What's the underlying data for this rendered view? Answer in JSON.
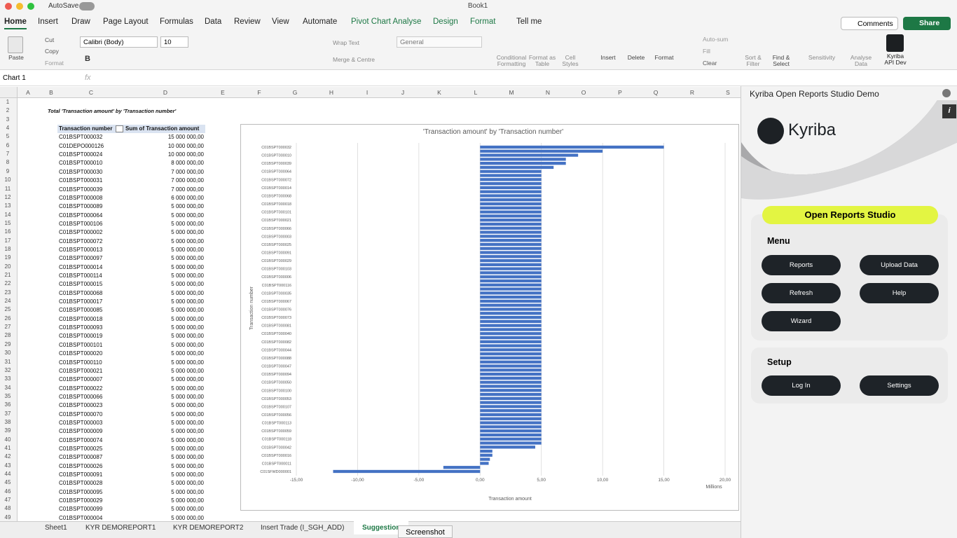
{
  "window": {
    "title": "Book1",
    "autosave": "AutoSave"
  },
  "tabs": [
    "Home",
    "Insert",
    "Draw",
    "Page Layout",
    "Formulas",
    "Data",
    "Review",
    "View",
    "Automate",
    "Pivot Chart Analyse",
    "Design",
    "Format",
    "Tell me"
  ],
  "top_buttons": {
    "comments": "Comments",
    "share": "Share"
  },
  "ribbon": {
    "paste": "Paste",
    "cut": "Cut",
    "copy": "Copy",
    "format_painter": "Format",
    "font": "Calibri (Body)",
    "size": "10",
    "wrap": "Wrap Text",
    "merge": "Merge & Centre",
    "number_format": "General",
    "conditional": "Conditional Formatting",
    "format_table": "Format as Table",
    "cell_styles": "Cell Styles",
    "insert": "Insert",
    "delete": "Delete",
    "format": "Format",
    "autosum": "Auto-sum",
    "fill": "Fill",
    "clear": "Clear",
    "sort": "Sort & Filter",
    "find": "Find & Select",
    "sensitivity": "Sensitivity",
    "analyse": "Analyse Data",
    "kyriba_dev": "Kyriba API Dev"
  },
  "formula_bar": {
    "name_box": "Chart 1"
  },
  "sheet": {
    "columns": [
      "A",
      "B",
      "C",
      "D",
      "E",
      "F",
      "G",
      "H",
      "I",
      "J",
      "K",
      "L",
      "M",
      "N",
      "O",
      "P",
      "Q",
      "R",
      "S"
    ],
    "row_headers": [
      1,
      2,
      3,
      4,
      5,
      6,
      7,
      8,
      9,
      10,
      11,
      12,
      13,
      14,
      15,
      16,
      17,
      18,
      19,
      20,
      21,
      22,
      23,
      24,
      25,
      26,
      27,
      28,
      29,
      30,
      31,
      32,
      33,
      34,
      35,
      36,
      37,
      38,
      39,
      40,
      41,
      42,
      43,
      44,
      45,
      46,
      47,
      48,
      49
    ],
    "title": "Total 'Transaction amount' by 'Transaction number'",
    "table": {
      "header": [
        "Transaction number",
        "Sum of Transaction amount"
      ],
      "rows": [
        [
          "C01BSPT000032",
          "15 000 000,00"
        ],
        [
          "C01DEPO000126",
          "10 000 000,00"
        ],
        [
          "C01BSPT000024",
          "10 000 000,00"
        ],
        [
          "C01BSPT000010",
          "8 000 000,00"
        ],
        [
          "C01BSPT000030",
          "7 000 000,00"
        ],
        [
          "C01BSPT000031",
          "7 000 000,00"
        ],
        [
          "C01BSPT000039",
          "7 000 000,00"
        ],
        [
          "C01BSPT000008",
          "6 000 000,00"
        ],
        [
          "C01BSPT000089",
          "5 000 000,00"
        ],
        [
          "C01BSPT000064",
          "5 000 000,00"
        ],
        [
          "C01BSPT000106",
          "5 000 000,00"
        ],
        [
          "C01BSPT000002",
          "5 000 000,00"
        ],
        [
          "C01BSPT000072",
          "5 000 000,00"
        ],
        [
          "C01BSPT000013",
          "5 000 000,00"
        ],
        [
          "C01BSPT000097",
          "5 000 000,00"
        ],
        [
          "C01BSPT000014",
          "5 000 000,00"
        ],
        [
          "C01BSPT000114",
          "5 000 000,00"
        ],
        [
          "C01BSPT000015",
          "5 000 000,00"
        ],
        [
          "C01BSPT000068",
          "5 000 000,00"
        ],
        [
          "C01BSPT000017",
          "5 000 000,00"
        ],
        [
          "C01BSPT000085",
          "5 000 000,00"
        ],
        [
          "C01BSPT000018",
          "5 000 000,00"
        ],
        [
          "C01BSPT000093",
          "5 000 000,00"
        ],
        [
          "C01BSPT000019",
          "5 000 000,00"
        ],
        [
          "C01BSPT000101",
          "5 000 000,00"
        ],
        [
          "C01BSPT000020",
          "5 000 000,00"
        ],
        [
          "C01BSPT000110",
          "5 000 000,00"
        ],
        [
          "C01BSPT000021",
          "5 000 000,00"
        ],
        [
          "C01BSPT000007",
          "5 000 000,00"
        ],
        [
          "C01BSPT000022",
          "5 000 000,00"
        ],
        [
          "C01BSPT000066",
          "5 000 000,00"
        ],
        [
          "C01BSPT000023",
          "5 000 000,00"
        ],
        [
          "C01BSPT000070",
          "5 000 000,00"
        ],
        [
          "C01BSPT000003",
          "5 000 000,00"
        ],
        [
          "C01BSPT000009",
          "5 000 000,00"
        ],
        [
          "C01BSPT000074",
          "5 000 000,00"
        ],
        [
          "C01BSPT000025",
          "5 000 000,00"
        ],
        [
          "C01BSPT000087",
          "5 000 000,00"
        ],
        [
          "C01BSPT000026",
          "5 000 000,00"
        ],
        [
          "C01BSPT000091",
          "5 000 000,00"
        ],
        [
          "C01BSPT000028",
          "5 000 000,00"
        ],
        [
          "C01BSPT000095",
          "5 000 000,00"
        ],
        [
          "C01BSPT000029",
          "5 000 000,00"
        ],
        [
          "C01BSPT000099",
          "5 000 000,00"
        ],
        [
          "C01BSPT000004",
          "5 000 000,00"
        ]
      ]
    }
  },
  "chart_data": {
    "type": "bar",
    "orientation": "horizontal",
    "title": "'Transaction amount' by 'Transaction number'",
    "x_label": "Transaction amount",
    "y_label": "Transaction number",
    "unit_label": "Millions",
    "color": "#4472c4",
    "grid": true,
    "categories": [
      "C01BSPT000032",
      null,
      "C01BSPT000010",
      null,
      "C01BSPT000039",
      null,
      "C01BSPT000064",
      null,
      "C01BSPT000072",
      null,
      "C01BSPT000014",
      null,
      "C01BSPT000068",
      null,
      "C01BSPT000018",
      null,
      "C01BSPT000101",
      null,
      "C01BSPT000021",
      null,
      "C01BSPT000066",
      null,
      "C01BSPT000003",
      null,
      "C01BSPT000025",
      null,
      "C01BSPT000091",
      null,
      "C01BSPT000029",
      null,
      "C01BSPT000103",
      null,
      "C01BSPT000006",
      null,
      "C01BSPT000116",
      null,
      "C01BSPT000035",
      null,
      "C01BSPT000067",
      null,
      "C01BSPT000076",
      null,
      "C01BSPT000073",
      null,
      "C01BSPT000081",
      null,
      "C01BSPT000040",
      null,
      "C01BSPT000082",
      null,
      "C01BSPT000044",
      null,
      "C01BSPT000088",
      null,
      "C01BSPT000047",
      null,
      "C01BSPT000094",
      null,
      "C01BSPT000050",
      null,
      "C01BSPT000100",
      null,
      "C01BSPT000053",
      null,
      "C01BSPT000107",
      null,
      "C01BSPT000056",
      null,
      "C01BSPT000113",
      null,
      "C01BSPT000059",
      null,
      "C01BSPT000118",
      null,
      "C01BSPT000042",
      null,
      "C01BSPT000016",
      null,
      "C01BSPT000011",
      null,
      "C01SFWD000001"
    ],
    "values": [
      15,
      10,
      8,
      7,
      7,
      6,
      5,
      5,
      5,
      5,
      5,
      5,
      5,
      5,
      5,
      5,
      5,
      5,
      5,
      5,
      5,
      5,
      5,
      5,
      5,
      5,
      5,
      5,
      5,
      5,
      5,
      5,
      5,
      5,
      5,
      5,
      5,
      5,
      5,
      5,
      5,
      5,
      5,
      5,
      5,
      5,
      5,
      5,
      5,
      5,
      5,
      5,
      5,
      5,
      5,
      5,
      5,
      5,
      5,
      5,
      5,
      5,
      5,
      5,
      5,
      5,
      5,
      5,
      5,
      5,
      5,
      5,
      5,
      5,
      4.5,
      1,
      1,
      0.8,
      0.7,
      -3,
      -12
    ],
    "xlim": [
      -15,
      20
    ],
    "xticks": [
      {
        "value": -15,
        "label": "-15,00"
      },
      {
        "value": -10,
        "label": "-10,00"
      },
      {
        "value": -5,
        "label": "-5,00"
      },
      {
        "value": 0,
        "label": "0,00"
      },
      {
        "value": 5,
        "label": "5,00"
      },
      {
        "value": 10,
        "label": "10,00"
      },
      {
        "value": 15,
        "label": "15,00"
      },
      {
        "value": 20,
        "label": "20,00"
      }
    ]
  },
  "sheet_tabs": [
    "Sheet1",
    "KYR DEMOREPORT1",
    "KYR DEMOREPORT2",
    "Insert Trade (I_SGH_ADD)",
    "Suggestion"
  ],
  "tooltip": "Screenshot",
  "panel": {
    "title": "Kyriba Open Reports Studio Demo",
    "logo": "Kyriba",
    "banner": "Open Reports Studio",
    "menu": {
      "heading": "Menu",
      "buttons": [
        "Reports",
        "Upload Data",
        "Refresh",
        "Help",
        "Wizard"
      ]
    },
    "setup": {
      "heading": "Setup",
      "buttons": [
        "Log In",
        "Settings"
      ]
    }
  }
}
